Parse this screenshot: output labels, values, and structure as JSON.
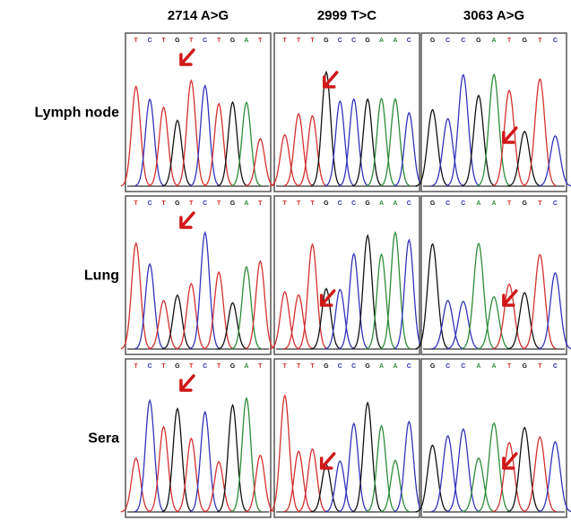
{
  "columns": [
    "2714 A>G",
    "2999 T>C",
    "3063 A>G"
  ],
  "rows": [
    {
      "label": "Lymph node",
      "sequences": [
        [
          "T",
          "C",
          "T",
          "G",
          "T",
          "C",
          "T",
          "G",
          "A",
          "T"
        ],
        [
          "T",
          "T",
          "T",
          "G",
          "C",
          "C",
          "G",
          "A",
          "A",
          "C"
        ],
        [
          "G",
          "C",
          "C",
          "G",
          "A",
          "T",
          "G",
          "T",
          "C"
        ]
      ]
    },
    {
      "label": "Lung",
      "sequences": [
        [
          "T",
          "C",
          "T",
          "G",
          "T",
          "C",
          "T",
          "G",
          "A",
          "T"
        ],
        [
          "T",
          "T",
          "T",
          "G",
          "C",
          "C",
          "G",
          "A",
          "A",
          "C"
        ],
        [
          "G",
          "C",
          "C",
          "A",
          "A",
          "T",
          "G",
          "T",
          "C"
        ]
      ]
    },
    {
      "label": "Sera",
      "sequences": [
        [
          "T",
          "C",
          "T",
          "G",
          "T",
          "C",
          "T",
          "G",
          "A",
          "T"
        ],
        [
          "T",
          "T",
          "T",
          "G",
          "C",
          "C",
          "G",
          "A",
          "A",
          "C"
        ],
        [
          "G",
          "C",
          "C",
          "A",
          "A",
          "T",
          "G",
          "T",
          "C"
        ]
      ]
    }
  ]
}
